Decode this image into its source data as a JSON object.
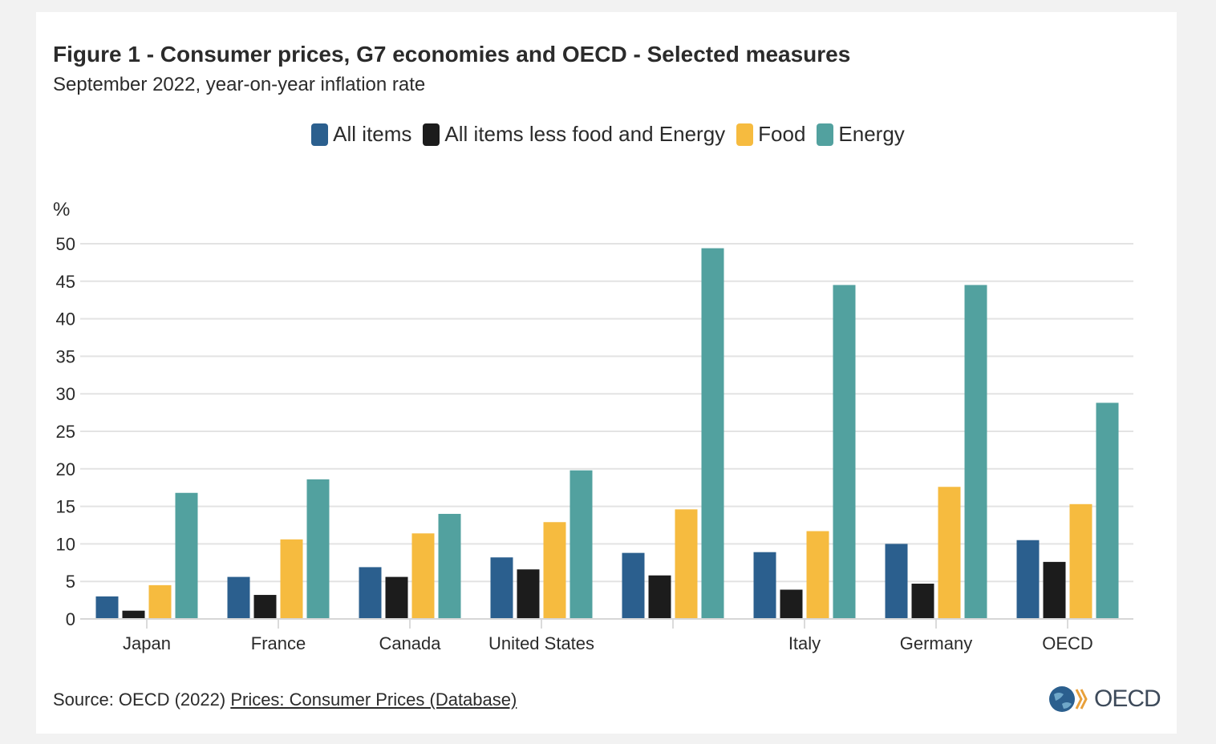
{
  "title": "Figure 1 - Consumer prices, G7 economies and OECD - Selected measures",
  "subtitle": "September 2022, year-on-year inflation rate",
  "source": {
    "prefix": "Source: OECD (2022) ",
    "link_text": "Prices: Consumer Prices (Database)"
  },
  "logo": {
    "text": "OECD",
    "icon": "oecd-globe-icon"
  },
  "colors": {
    "all_items": "#2b5f8e",
    "core": "#1c1c1c",
    "food": "#f6bb3f",
    "energy": "#52a19f"
  },
  "chart_data": {
    "type": "bar",
    "ylabel": "%",
    "ylim": [
      0,
      50
    ],
    "yticks": [
      "0",
      "5",
      "10",
      "15",
      "20",
      "25",
      "30",
      "35",
      "40",
      "45",
      "50"
    ],
    "grid": true,
    "legend_position": "top-center",
    "categories": [
      "Japan",
      "France",
      "Canada",
      "United States",
      "",
      "Italy",
      "Germany",
      "OECD"
    ],
    "series": [
      {
        "name": "All items",
        "values": [
          3.0,
          5.6,
          6.9,
          8.2,
          8.8,
          8.9,
          10.0,
          10.5
        ]
      },
      {
        "name": "All items less food and Energy",
        "values": [
          1.1,
          3.2,
          5.6,
          6.6,
          5.8,
          3.9,
          4.7,
          7.6
        ]
      },
      {
        "name": "Food",
        "values": [
          4.5,
          10.6,
          11.4,
          12.9,
          14.6,
          11.7,
          17.6,
          15.3
        ]
      },
      {
        "name": "Energy",
        "values": [
          16.8,
          18.6,
          14.0,
          19.8,
          49.4,
          44.5,
          44.5,
          28.8
        ]
      }
    ]
  }
}
